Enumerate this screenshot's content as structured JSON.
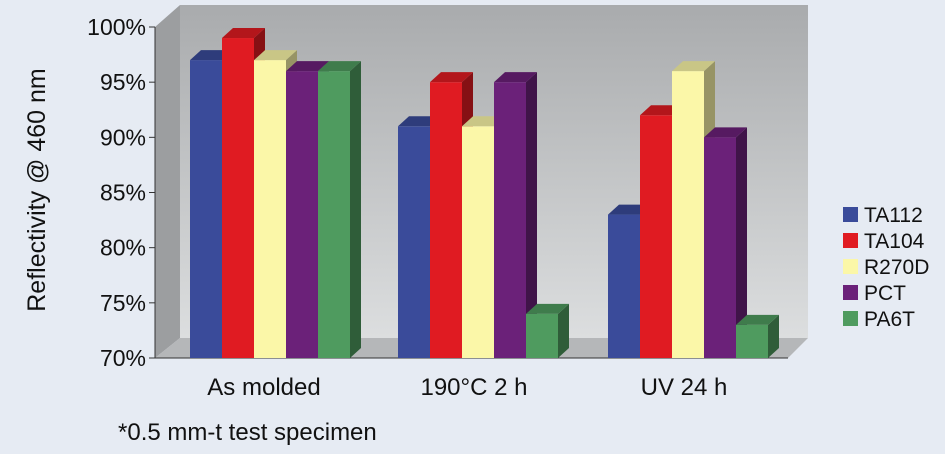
{
  "chart_data": {
    "type": "bar",
    "title": "",
    "ylabel": "Reflectivity @ 460 nm",
    "xlabel": "",
    "ylim": [
      70,
      100
    ],
    "yticks": [
      "70%",
      "75%",
      "80%",
      "85%",
      "90%",
      "95%",
      "100%"
    ],
    "categories": [
      "As molded",
      "190°C 2 h",
      "UV 24 h"
    ],
    "series": [
      {
        "name": "TA112",
        "color": "#3a4b9a",
        "values": [
          97,
          91,
          83
        ]
      },
      {
        "name": "TA104",
        "color": "#e01b22",
        "values": [
          99,
          95,
          92
        ]
      },
      {
        "name": "R270D",
        "color": "#fbf7a8",
        "values": [
          97,
          91,
          96
        ]
      },
      {
        "name": "PCT",
        "color": "#6b2179",
        "values": [
          96,
          95,
          90
        ]
      },
      {
        "name": "PA6T",
        "color": "#4f9b5f",
        "values": [
          96,
          74,
          73
        ]
      }
    ],
    "legend_position": "right",
    "grid": false,
    "footnote": "*0.5 mm-t test specimen"
  }
}
